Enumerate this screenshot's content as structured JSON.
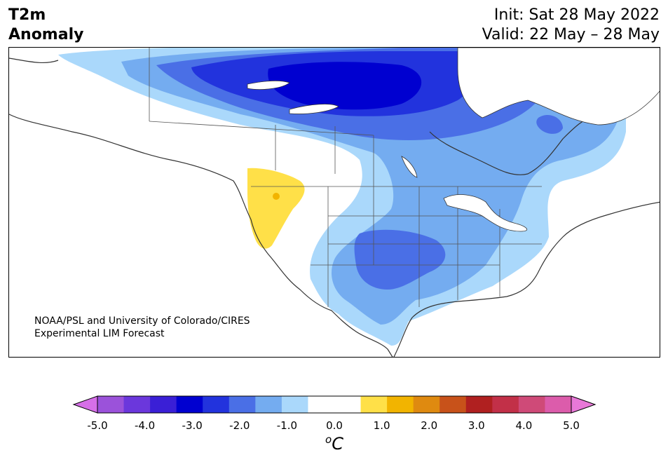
{
  "header": {
    "title_line1": "T2m",
    "title_line2": "Anomaly",
    "init": "Init: Sat 28 May 2022",
    "valid": "Valid: 22 May – 28 May"
  },
  "credit": {
    "line1": "NOAA/PSL and University of Colorado/CIRES",
    "line2": "Experimental LIM Forecast"
  },
  "colorbar": {
    "unit_super": "o",
    "unit": "C",
    "ticks": [
      "-5.0",
      "-4.0",
      "-3.0",
      "-2.0",
      "-1.0",
      "0.0",
      "1.0",
      "2.0",
      "3.0",
      "4.0",
      "5.0"
    ],
    "colors": [
      "#d66fe8",
      "#9b52da",
      "#6b37dc",
      "#3a1fd6",
      "#0000d0",
      "#2233dd",
      "#4a6fe6",
      "#74acf0",
      "#aad8fb",
      "#ffffff",
      "#ffffff",
      "#ffe048",
      "#f2b400",
      "#df8a10",
      "#c8521a",
      "#b02020",
      "#c23048",
      "#cf4a78",
      "#dc5cab",
      "#e878d8"
    ]
  },
  "map": {
    "region": "North America",
    "land_color": "#ffffff",
    "coast_color": "#333333",
    "water_color": "#ffffff"
  }
}
